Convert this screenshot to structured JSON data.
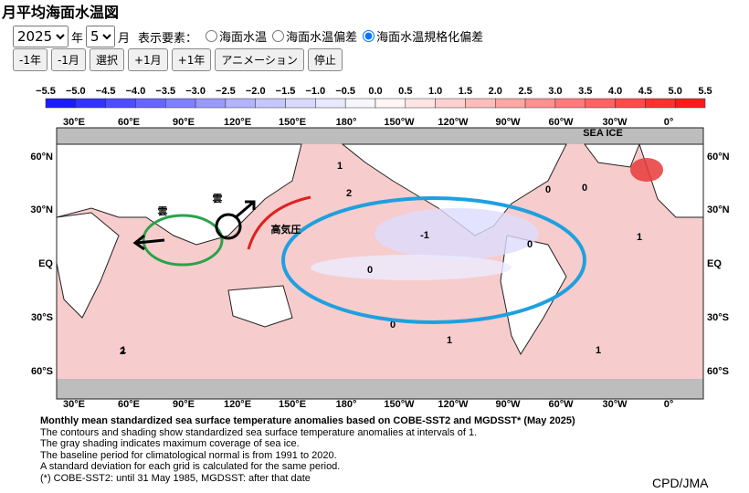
{
  "header": {
    "title": "月平均海面水温図"
  },
  "controls": {
    "year": "2025",
    "year_unit": "年",
    "month": "5",
    "month_unit": "月",
    "elements_label": "表示要素：",
    "options": [
      "海面水温",
      "海面水温偏差",
      "海面水温規格化偏差"
    ],
    "selected_option": 2,
    "buttons": [
      "-1年",
      "-1月",
      "選択",
      "+1月",
      "+1年",
      "アニメーション",
      "停止"
    ]
  },
  "map": {
    "colorbar": {
      "labels": [
        "−5.5",
        "−5.0",
        "−4.5",
        "−4.0",
        "−3.5",
        "−3.0",
        "−2.5",
        "−2.0",
        "−1.5",
        "−1.0",
        "−0.5",
        "0.0",
        "0.5",
        "1.0",
        "1.5",
        "2.0",
        "2.5",
        "3.0",
        "3.5",
        "4.0",
        "4.5",
        "5.0",
        "5.5"
      ],
      "colors": [
        "#1a1aff",
        "#3333ff",
        "#4d4dff",
        "#6666ff",
        "#8080ff",
        "#9999ff",
        "#b3b3ff",
        "#c6c6ff",
        "#d9d9ff",
        "#e8e8ff",
        "#f6f6ff",
        "#fff6f6",
        "#ffe4e4",
        "#ffd0d0",
        "#ffbcbc",
        "#ffa6a6",
        "#ff9090",
        "#ff7a7a",
        "#ff6262",
        "#ff4a4a",
        "#ff3030",
        "#ff1a1a"
      ]
    },
    "longitudes": [
      "30°E",
      "60°E",
      "90°E",
      "120°E",
      "150°E",
      "180°",
      "150°W",
      "120°W",
      "90°W",
      "60°W",
      "30°W",
      "0°"
    ],
    "latitudes": [
      "60°N",
      "30°N",
      "EQ",
      "30°S",
      "60°S"
    ],
    "sea_ice_label": "SEA ICE",
    "contour_labels": [
      "1",
      "2",
      "0",
      "-1",
      "0",
      "0",
      "1",
      "0",
      "1",
      "2",
      "1",
      "0",
      "1"
    ],
    "annotations": {
      "cloud_1": "雲",
      "cloud_2": "雲",
      "high_pressure": "高気圧"
    }
  },
  "caption": {
    "title": "Monthly mean standardized sea surface temperature anomalies based on COBE-SST2 and MGDSST* (May 2025)",
    "lines": [
      "The contours and shading show standardized sea surface temperature anomalies at intervals of 1.",
      "The gray shading indicates maximum coverage of sea ice.",
      "The baseline period for climatological normal is from 1991 to 2020.",
      "A standard deviation for each grid is calculated for the same period.",
      "(*) COBE-SST2: until 31 May 1985, MGDSST: after that date"
    ],
    "credit": "CPD/JMA"
  }
}
